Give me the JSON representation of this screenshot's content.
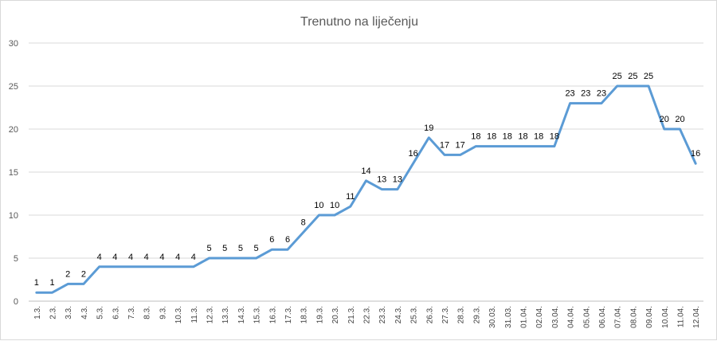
{
  "chart_data": {
    "type": "line",
    "title": "Trenutno na liječenju",
    "xlabel": "",
    "ylabel": "",
    "ylim": [
      0,
      30
    ],
    "yticks": [
      0,
      5,
      10,
      15,
      20,
      25,
      30
    ],
    "grid": true,
    "legend": "none",
    "line_color": "#5b9bd5",
    "grid_color": "#d9d9d9",
    "categories": [
      "1.3.",
      "2.3.",
      "3.3.",
      "4.3.",
      "5.3.",
      "6.3.",
      "7.3.",
      "8.3.",
      "9.3.",
      "10.3.",
      "11.3.",
      "12.3.",
      "13.3.",
      "14.3.",
      "15.3.",
      "16.3.",
      "17.3.",
      "18.3.",
      "19.3.",
      "20.3.",
      "21.3.",
      "22.3.",
      "23.3.",
      "24.3.",
      "25.3.",
      "26.3.",
      "27.3.",
      "28.3.",
      "29.3.",
      "30.03.",
      "31.03.",
      "01.04.",
      "02.04.",
      "03.04.",
      "04.04.",
      "05.04.",
      "06.04.",
      "07.04.",
      "08.04.",
      "09.04.",
      "10.04.",
      "11.04.",
      "12.04."
    ],
    "series": [
      {
        "values": [
          1,
          1,
          2,
          2,
          4,
          4,
          4,
          4,
          4,
          4,
          4,
          5,
          5,
          5,
          5,
          6,
          6,
          8,
          10,
          10,
          11,
          14,
          13,
          13,
          16,
          19,
          17,
          17,
          18,
          18,
          18,
          18,
          18,
          18,
          23,
          23,
          23,
          25,
          25,
          25,
          20,
          20,
          16
        ]
      }
    ]
  }
}
